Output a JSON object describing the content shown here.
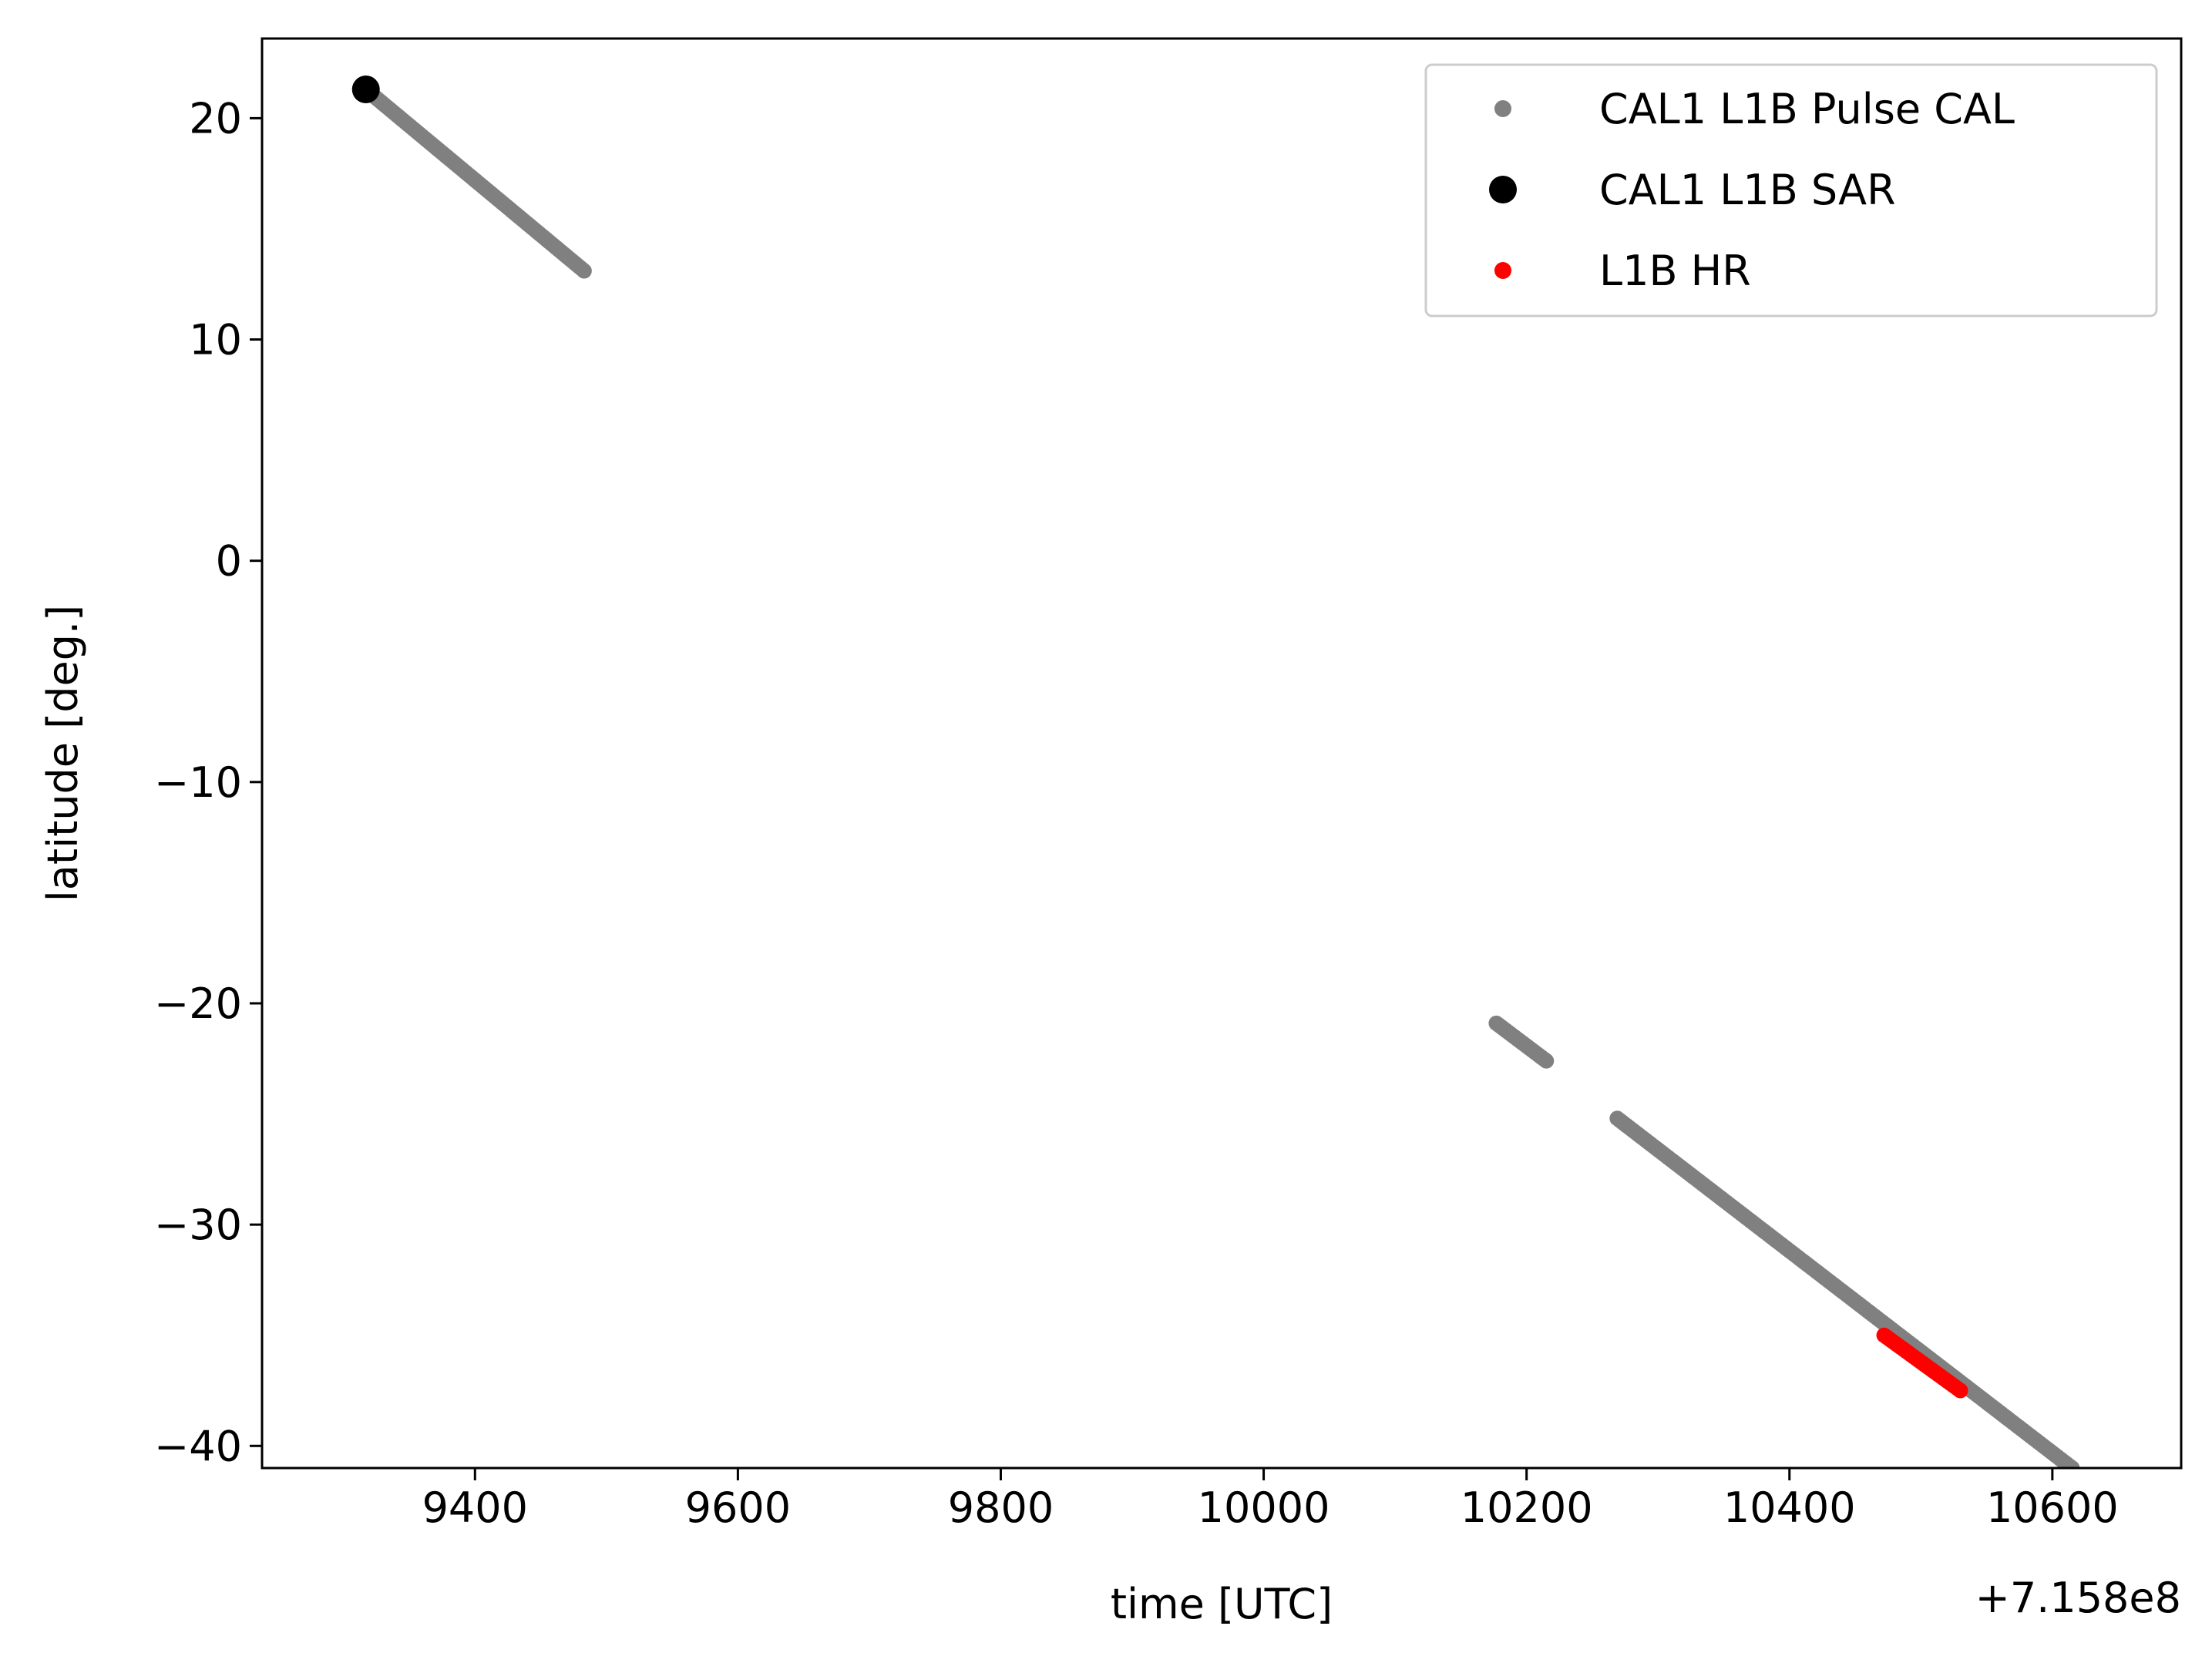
{
  "chart_data": {
    "type": "scatter",
    "xlabel": "time [UTC]",
    "ylabel": "latitude [deg.]",
    "x_offset_label": "+7.158e8",
    "xlim": [
      9238,
      10698
    ],
    "ylim": [
      -41,
      23.6
    ],
    "x_ticks": [
      9400,
      9600,
      9800,
      10000,
      10200,
      10400,
      10600
    ],
    "x_tick_labels": [
      "9400",
      "9600",
      "9800",
      "10000",
      "10200",
      "10400",
      "10600"
    ],
    "y_ticks": [
      20,
      10,
      0,
      -10,
      -20,
      -30,
      -40
    ],
    "y_tick_labels": [
      "20",
      "10",
      "0",
      "−10",
      "−20",
      "−30",
      "−40"
    ],
    "legend_position": "upper-right",
    "grid": false,
    "series": [
      {
        "name": "CAL1 L1B Pulse CAL",
        "color": "#808080",
        "marker": "small-dot",
        "segments": [
          {
            "x": [
              9317,
              9483
            ],
            "y": [
              21.3,
              13.1
            ]
          },
          {
            "x": [
              10177,
              10215
            ],
            "y": [
              -20.9,
              -22.6
            ]
          },
          {
            "x": [
              10269,
              10615
            ],
            "y": [
              -25.2,
              -41.0
            ]
          }
        ]
      },
      {
        "name": "CAL1 L1B SAR",
        "color": "#000000",
        "marker": "large-dot",
        "points": [
          {
            "x": 9317,
            "y": 21.3
          }
        ]
      },
      {
        "name": "L1B HR",
        "color": "#ff0000",
        "marker": "small-dot",
        "segments": [
          {
            "x": [
              10472,
              10530
            ],
            "y": [
              -35.0,
              -37.5
            ]
          }
        ]
      }
    ]
  }
}
